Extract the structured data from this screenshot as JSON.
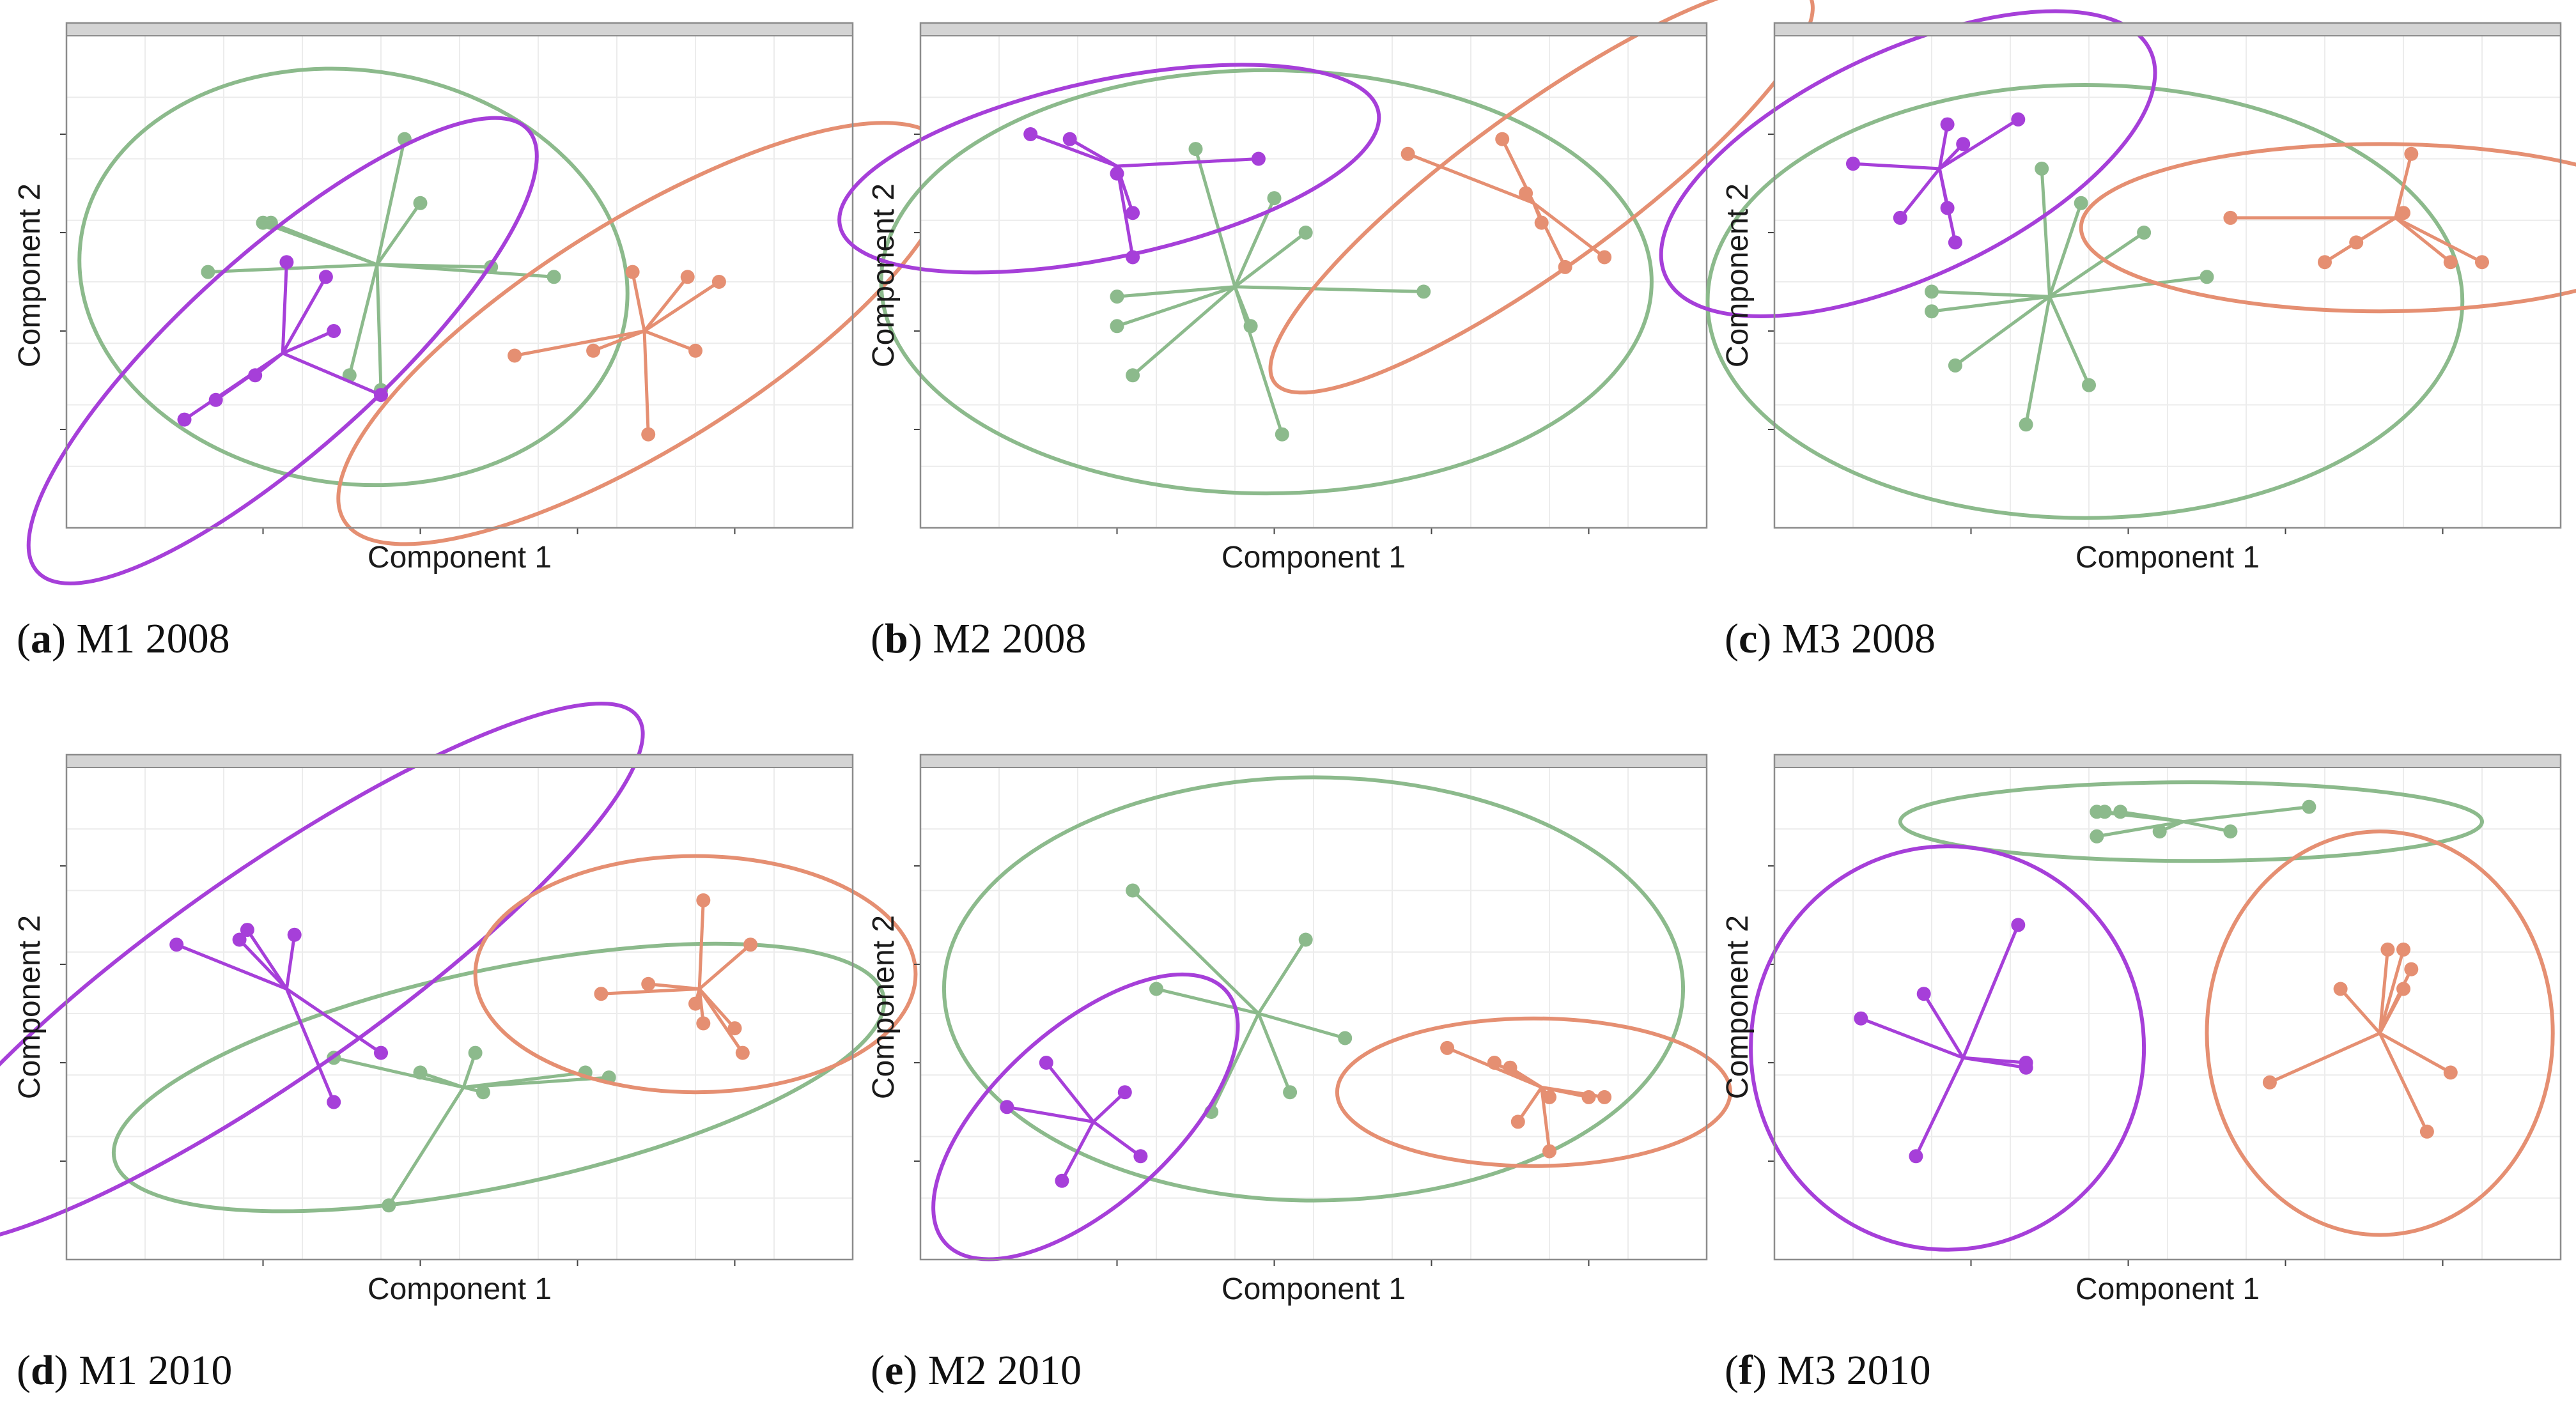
{
  "colors": {
    "purple": "#a63fd9",
    "green": "#8cba8c",
    "orange": "#e58f72",
    "strip": "#d4d4d4",
    "frame": "#8c8c8c",
    "grid": "#ececec"
  },
  "chart_data": [
    {
      "type": "scatter",
      "letter": "a",
      "caption": "M1 2008",
      "xlabel": "Component 1",
      "ylabel": "Component 2",
      "xlim": [
        0,
        100
      ],
      "ylim": [
        0,
        100
      ],
      "grid": true,
      "clusters": [
        {
          "color": "green",
          "centroid": [
            39.5,
            53.5
          ],
          "points": [
            [
              43,
              79
            ],
            [
              45,
              66
            ],
            [
              25,
              62
            ],
            [
              26,
              62
            ],
            [
              18,
              52
            ],
            [
              36,
              31
            ],
            [
              40,
              28
            ],
            [
              54,
              53
            ],
            [
              62,
              51
            ]
          ],
          "ellipse": {
            "cx": 36.5,
            "cy": 51,
            "rx": 35,
            "ry": 42,
            "rot": 8
          }
        },
        {
          "color": "purple",
          "centroid": [
            27.5,
            35.5
          ],
          "points": [
            [
              28,
              54
            ],
            [
              33,
              51
            ],
            [
              34,
              40
            ],
            [
              24,
              31
            ],
            [
              19,
              26
            ],
            [
              15,
              22
            ],
            [
              40,
              27
            ]
          ],
          "ellipse": {
            "cx": 27.5,
            "cy": 36,
            "rx": 42,
            "ry": 20,
            "rot": -42
          }
        },
        {
          "color": "orange",
          "centroid": [
            73.5,
            40
          ],
          "points": [
            [
              72,
              52
            ],
            [
              79,
              51
            ],
            [
              83,
              50
            ],
            [
              67,
              36
            ],
            [
              80,
              36
            ],
            [
              57,
              35
            ],
            [
              74,
              19
            ]
          ],
          "ellipse": {
            "cx": 73.5,
            "cy": 39.5,
            "rx": 45,
            "ry": 23,
            "rot": -32
          }
        }
      ]
    },
    {
      "type": "scatter",
      "letter": "b",
      "caption": "M2 2008",
      "xlabel": "Component 1",
      "ylabel": "Component 2",
      "xlim": [
        0,
        100
      ],
      "ylim": [
        0,
        100
      ],
      "grid": true,
      "clusters": [
        {
          "color": "green",
          "centroid": [
            40,
            49
          ],
          "points": [
            [
              35,
              77
            ],
            [
              45,
              67
            ],
            [
              49,
              60
            ],
            [
              25,
              47
            ],
            [
              25,
              41
            ],
            [
              64,
              48
            ],
            [
              42,
              41
            ],
            [
              27,
              31
            ],
            [
              46,
              19
            ]
          ],
          "ellipse": {
            "cx": 44,
            "cy": 50,
            "rx": 49,
            "ry": 43,
            "rot": 0
          }
        },
        {
          "color": "purple",
          "centroid": [
            25,
            73.5
          ],
          "points": [
            [
              14,
              80
            ],
            [
              19,
              79
            ],
            [
              43,
              75
            ],
            [
              27,
              64
            ],
            [
              27,
              55
            ],
            [
              25,
              72
            ]
          ],
          "ellipse": {
            "cx": 24,
            "cy": 73,
            "rx": 35,
            "ry": 18,
            "rot": -12
          }
        },
        {
          "color": "orange",
          "centroid": [
            78,
            66
          ],
          "points": [
            [
              74,
              79
            ],
            [
              62,
              76
            ],
            [
              77,
              68
            ],
            [
              79,
              62
            ],
            [
              87,
              55
            ],
            [
              82,
              53
            ]
          ],
          "ellipse": {
            "cx": 79,
            "cy": 69,
            "rx": 42,
            "ry": 16,
            "rot": -36
          }
        }
      ]
    },
    {
      "type": "scatter",
      "letter": "c",
      "caption": "M3 2008",
      "xlabel": "Component 1",
      "ylabel": "Component 2",
      "xlim": [
        0,
        100
      ],
      "ylim": [
        0,
        100
      ],
      "grid": true,
      "clusters": [
        {
          "color": "green",
          "centroid": [
            35,
            47
          ],
          "points": [
            [
              34,
              73
            ],
            [
              39,
              66
            ],
            [
              47,
              60
            ],
            [
              55,
              51
            ],
            [
              20,
              48
            ],
            [
              20,
              44
            ],
            [
              23,
              33
            ],
            [
              40,
              29
            ],
            [
              32,
              21
            ]
          ],
          "ellipse": {
            "cx": 39.5,
            "cy": 46,
            "rx": 48,
            "ry": 44,
            "rot": 0
          }
        },
        {
          "color": "purple",
          "centroid": [
            21,
            73
          ],
          "points": [
            [
              22,
              82
            ],
            [
              31,
              83
            ],
            [
              24,
              78
            ],
            [
              10,
              74
            ],
            [
              22,
              65
            ],
            [
              16,
              63
            ],
            [
              23,
              58
            ]
          ],
          "ellipse": {
            "cx": 17,
            "cy": 74,
            "rx": 34,
            "ry": 23,
            "rot": -25
          }
        },
        {
          "color": "orange",
          "centroid": [
            79,
            63
          ],
          "points": [
            [
              81,
              76
            ],
            [
              58,
              63
            ],
            [
              74,
              58
            ],
            [
              80,
              64
            ],
            [
              86,
              54
            ],
            [
              70,
              54
            ],
            [
              90,
              54
            ]
          ],
          "ellipse": {
            "cx": 77,
            "cy": 61,
            "rx": 38,
            "ry": 17,
            "rot": 0
          }
        }
      ]
    },
    {
      "type": "scatter",
      "letter": "d",
      "caption": "M1 2010",
      "xlabel": "Component 1",
      "ylabel": "Component 2",
      "xlim": [
        0,
        100
      ],
      "ylim": [
        0,
        100
      ],
      "grid": true,
      "clusters": [
        {
          "color": "green",
          "centroid": [
            50.5,
            35
          ],
          "points": [
            [
              34,
              41
            ],
            [
              45,
              38
            ],
            [
              52,
              42
            ],
            [
              66,
              38
            ],
            [
              69,
              37
            ],
            [
              41,
              11
            ],
            [
              53,
              34
            ]
          ],
          "ellipse": {
            "cx": 55,
            "cy": 37,
            "rx": 50,
            "ry": 22,
            "rot": -12
          }
        },
        {
          "color": "purple",
          "centroid": [
            28,
            55
          ],
          "points": [
            [
              14,
              64
            ],
            [
              23,
              67
            ],
            [
              29,
              66
            ],
            [
              22,
              65
            ],
            [
              40,
              42
            ],
            [
              34,
              32
            ]
          ],
          "ellipse": {
            "cx": 26,
            "cy": 58,
            "rx": 57,
            "ry": 21,
            "rot": -35
          }
        },
        {
          "color": "orange",
          "centroid": [
            80.5,
            55
          ],
          "points": [
            [
              81,
              73
            ],
            [
              87,
              64
            ],
            [
              74,
              56
            ],
            [
              68,
              54
            ],
            [
              80,
              52
            ],
            [
              85,
              47
            ],
            [
              81,
              48
            ],
            [
              86,
              42
            ]
          ],
          "ellipse": {
            "cx": 80,
            "cy": 58,
            "rx": 28,
            "ry": 24,
            "rot": 0
          }
        }
      ]
    },
    {
      "type": "scatter",
      "letter": "e",
      "caption": "M2 2010",
      "xlabel": "Component 1",
      "ylabel": "Component 2",
      "xlim": [
        0,
        100
      ],
      "ylim": [
        0,
        100
      ],
      "grid": true,
      "clusters": [
        {
          "color": "green",
          "centroid": [
            43,
            50
          ],
          "points": [
            [
              27,
              75
            ],
            [
              49,
              65
            ],
            [
              30,
              55
            ],
            [
              54,
              45
            ],
            [
              47,
              34
            ],
            [
              37,
              30
            ]
          ],
          "ellipse": {
            "cx": 50,
            "cy": 55,
            "rx": 47,
            "ry": 43,
            "rot": 0
          }
        },
        {
          "color": "purple",
          "centroid": [
            22,
            28
          ],
          "points": [
            [
              16,
              40
            ],
            [
              11,
              31
            ],
            [
              26,
              34
            ],
            [
              28,
              21
            ],
            [
              18,
              16
            ]
          ],
          "ellipse": {
            "cx": 21,
            "cy": 29,
            "rx": 24,
            "ry": 18,
            "rot": -42
          }
        },
        {
          "color": "orange",
          "centroid": [
            79,
            35
          ],
          "points": [
            [
              67,
              43
            ],
            [
              73,
              40
            ],
            [
              75,
              39
            ],
            [
              80,
              33
            ],
            [
              85,
              33
            ],
            [
              87,
              33
            ],
            [
              76,
              28
            ],
            [
              80,
              22
            ]
          ],
          "ellipse": {
            "cx": 78,
            "cy": 34,
            "rx": 25,
            "ry": 15,
            "rot": 0
          }
        }
      ]
    },
    {
      "type": "scatter",
      "letter": "f",
      "caption": "M3 2010",
      "xlabel": "Component 1",
      "ylabel": "Component 2",
      "xlim": [
        0,
        100
      ],
      "ylim": [
        0,
        100
      ],
      "grid": true,
      "clusters": [
        {
          "color": "green",
          "centroid": [
            52,
            89
          ],
          "points": [
            [
              41,
              91
            ],
            [
              42,
              91
            ],
            [
              44,
              91
            ],
            [
              68,
              92
            ],
            [
              58,
              87
            ],
            [
              49,
              87
            ],
            [
              41,
              86
            ]
          ],
          "ellipse": {
            "cx": 53,
            "cy": 89,
            "rx": 37,
            "ry": 8,
            "rot": 0
          }
        },
        {
          "color": "purple",
          "centroid": [
            24,
            41
          ],
          "points": [
            [
              31,
              68
            ],
            [
              19,
              54
            ],
            [
              11,
              49
            ],
            [
              32,
              40
            ],
            [
              32,
              39
            ],
            [
              18,
              21
            ]
          ],
          "ellipse": {
            "cx": 22,
            "cy": 43,
            "rx": 25,
            "ry": 41,
            "rot": 0
          }
        },
        {
          "color": "orange",
          "centroid": [
            77,
            46
          ],
          "points": [
            [
              78,
              63
            ],
            [
              80,
              63
            ],
            [
              81,
              59
            ],
            [
              72,
              55
            ],
            [
              80,
              55
            ],
            [
              86,
              38
            ],
            [
              63,
              36
            ],
            [
              83,
              26
            ]
          ],
          "ellipse": {
            "cx": 77,
            "cy": 46,
            "rx": 22,
            "ry": 41,
            "rot": 0
          }
        }
      ]
    }
  ]
}
